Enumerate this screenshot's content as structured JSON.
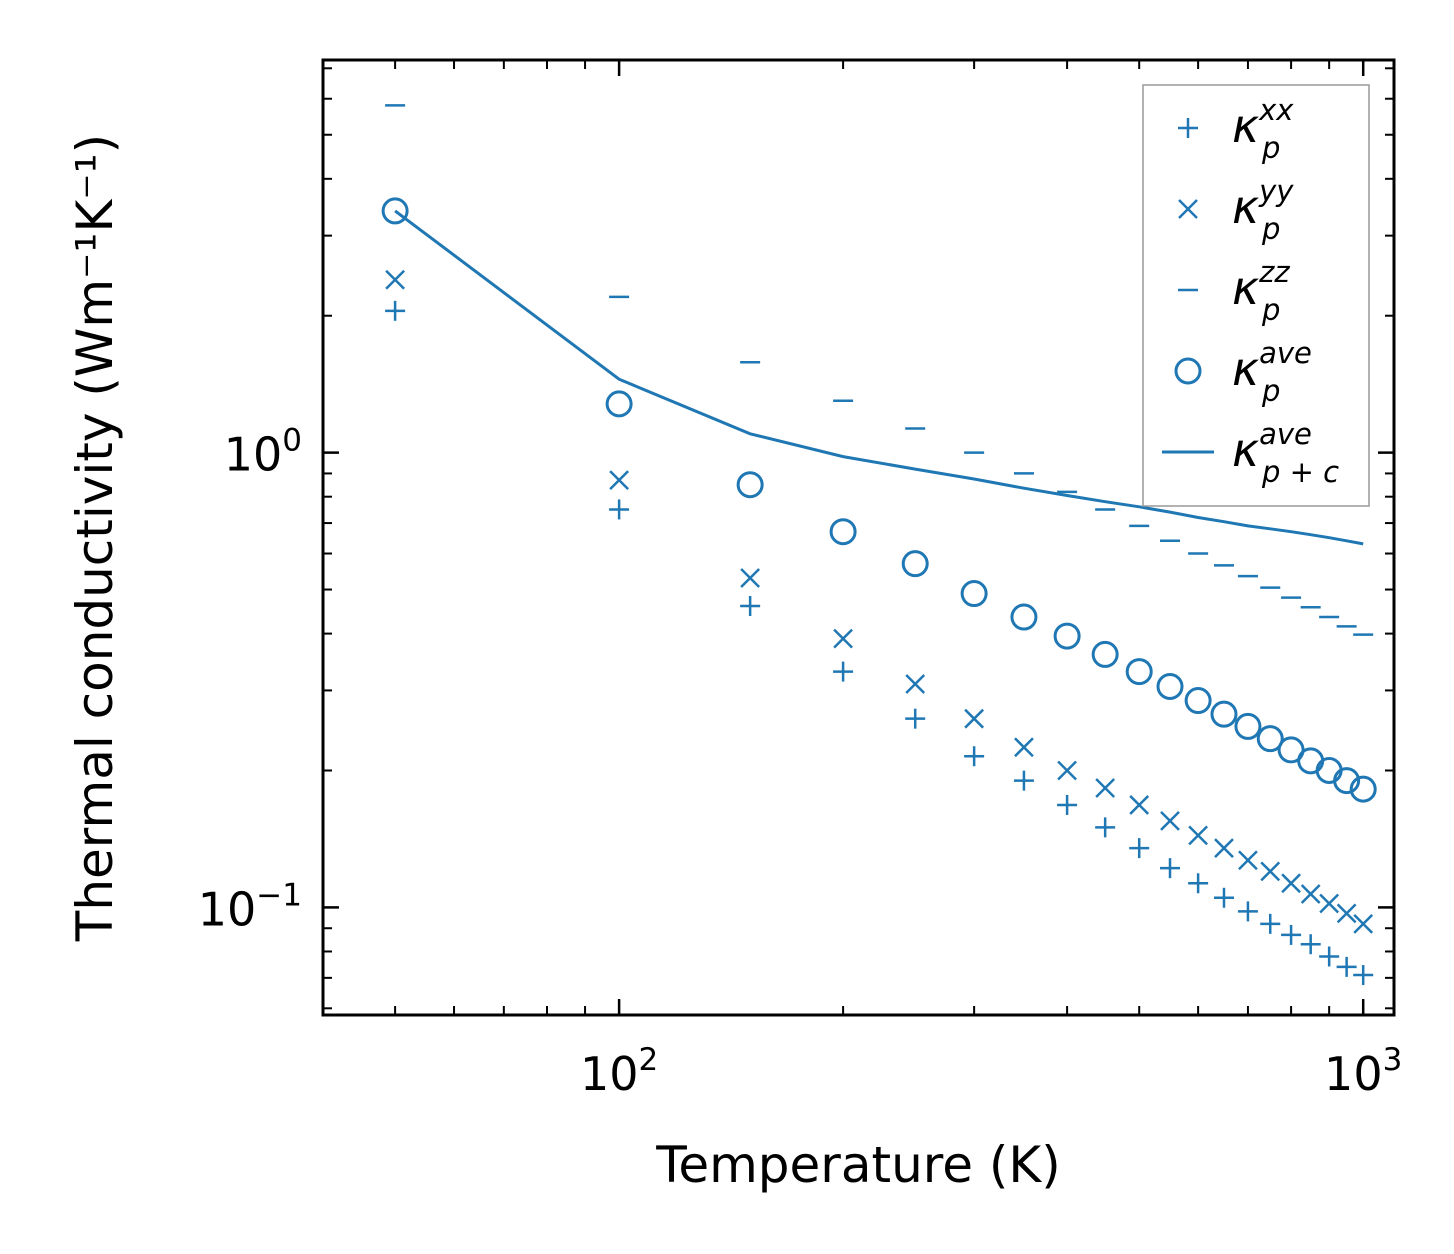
{
  "chart_data": {
    "type": "scatter",
    "title": "",
    "xlabel": "Temperature (K)",
    "ylabel": "Thermal conductivity (Wm⁻¹K⁻¹)",
    "xscale": "log",
    "yscale": "log",
    "xlim": [
      40,
      1100
    ],
    "ylim": [
      0.058,
      7.3
    ],
    "x_ticks": [
      {
        "value": 100,
        "base": "10",
        "exp": "2"
      },
      {
        "value": 1000,
        "base": "10",
        "exp": "3"
      }
    ],
    "y_ticks": [
      {
        "value": 0.1,
        "base": "10",
        "exp": "−1"
      },
      {
        "value": 1,
        "base": "10",
        "exp": "0"
      }
    ],
    "legend_position": "top-right",
    "color": "#1f77b4",
    "x": [
      50,
      100,
      150,
      200,
      250,
      300,
      350,
      400,
      450,
      500,
      550,
      600,
      650,
      700,
      750,
      800,
      850,
      900,
      950,
      1000
    ],
    "series": [
      {
        "name": "kappa_p_xx",
        "label_base": "κ",
        "label_sub": "p",
        "label_sup": "xx",
        "marker": "plus",
        "values": [
          2.05,
          0.75,
          0.46,
          0.33,
          0.26,
          0.215,
          0.19,
          0.168,
          0.15,
          0.135,
          0.122,
          0.113,
          0.105,
          0.098,
          0.092,
          0.087,
          0.083,
          0.078,
          0.074,
          0.071
        ]
      },
      {
        "name": "kappa_p_yy",
        "label_base": "κ",
        "label_sub": "p",
        "label_sup": "yy",
        "marker": "x",
        "values": [
          2.4,
          0.87,
          0.53,
          0.39,
          0.31,
          0.26,
          0.225,
          0.2,
          0.183,
          0.168,
          0.155,
          0.144,
          0.135,
          0.127,
          0.12,
          0.113,
          0.107,
          0.102,
          0.097,
          0.092
        ]
      },
      {
        "name": "kappa_p_zz",
        "label_base": "κ",
        "label_sub": "p",
        "label_sup": "zz",
        "marker": "hline",
        "values": [
          5.8,
          2.2,
          1.58,
          1.3,
          1.13,
          1.0,
          0.9,
          0.82,
          0.75,
          0.69,
          0.64,
          0.6,
          0.565,
          0.535,
          0.505,
          0.48,
          0.457,
          0.435,
          0.415,
          0.398
        ]
      },
      {
        "name": "kappa_p_ave",
        "label_base": "κ",
        "label_sub": "p",
        "label_sup": "ave",
        "marker": "circle",
        "values": [
          3.4,
          1.28,
          0.85,
          0.67,
          0.57,
          0.49,
          0.435,
          0.395,
          0.36,
          0.33,
          0.306,
          0.285,
          0.266,
          0.25,
          0.235,
          0.222,
          0.21,
          0.2,
          0.19,
          0.182
        ]
      },
      {
        "name": "kappa_p_plus_c_ave",
        "label_base": "κ",
        "label_sub": "p + c",
        "label_sup": "ave",
        "marker": "line",
        "values": [
          3.4,
          1.45,
          1.1,
          0.98,
          0.92,
          0.875,
          0.835,
          0.805,
          0.78,
          0.76,
          0.74,
          0.72,
          0.705,
          0.69,
          0.68,
          0.67,
          0.66,
          0.65,
          0.64,
          0.63
        ]
      }
    ]
  }
}
